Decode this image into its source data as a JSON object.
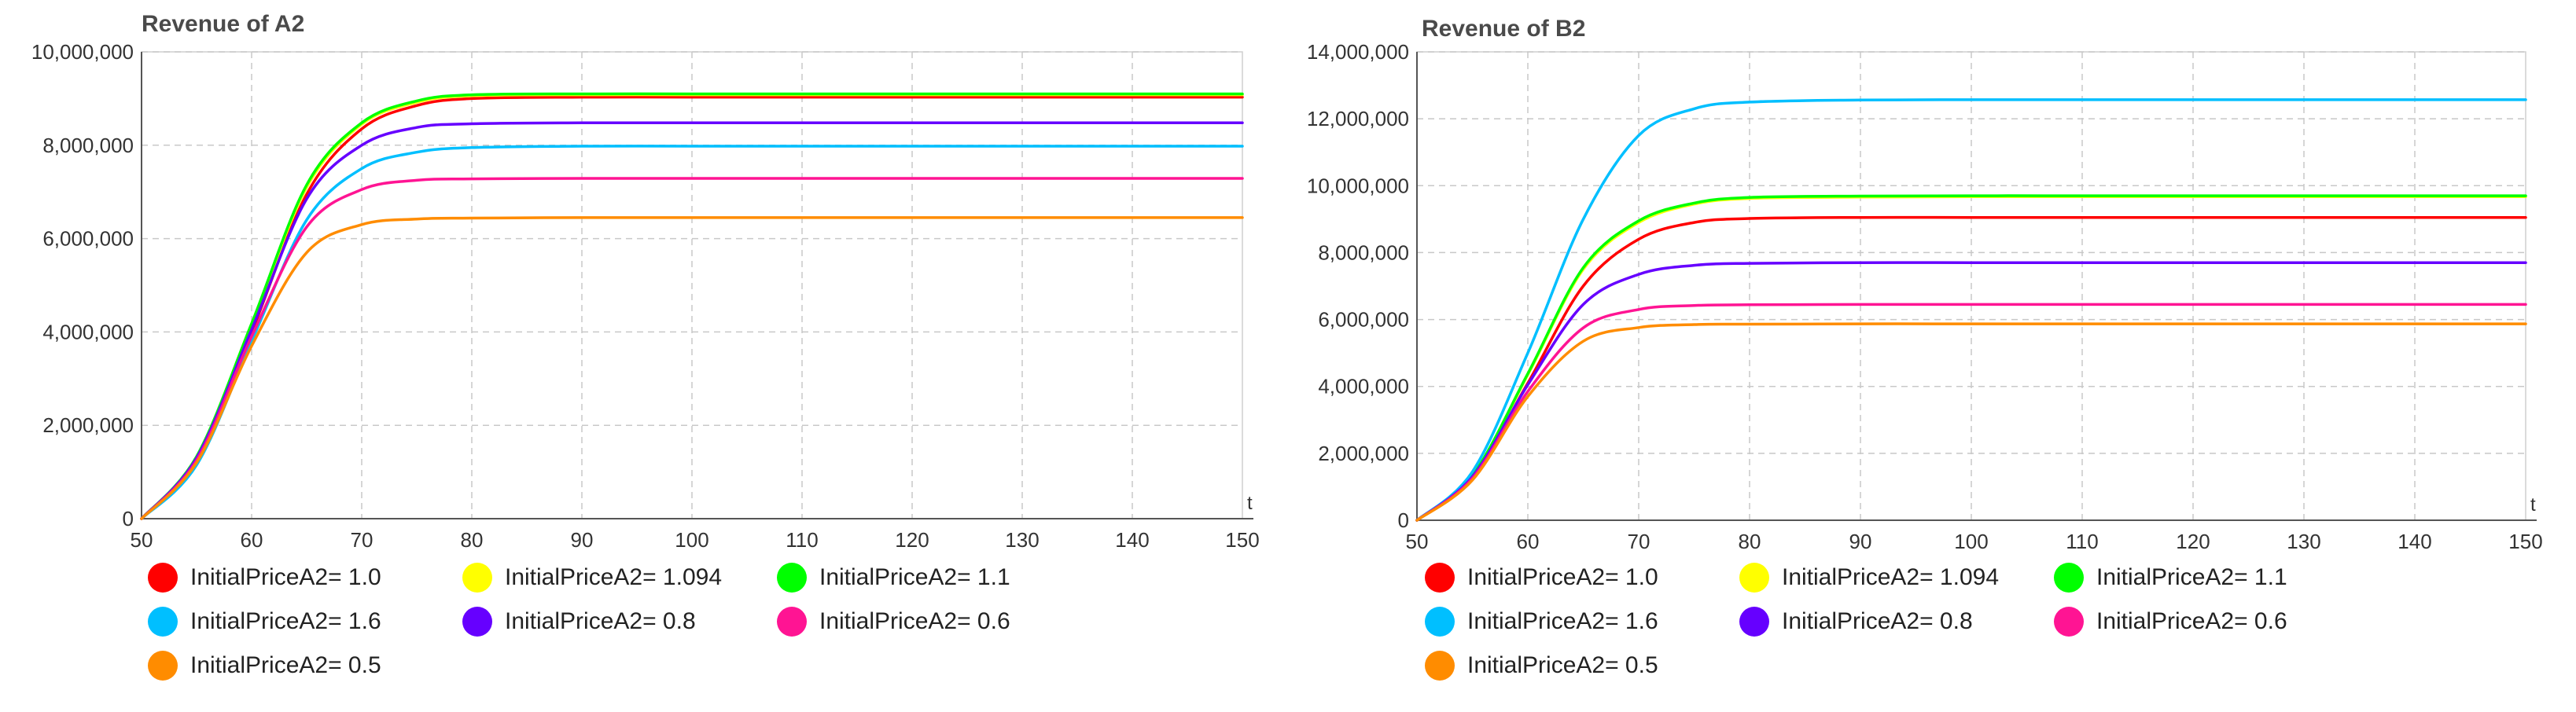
{
  "chart_data": [
    {
      "type": "line",
      "title": "Revenue of A2",
      "xlabel": "t",
      "ylabel": "",
      "xlim": [
        50,
        150
      ],
      "ylim": [
        0,
        10000000
      ],
      "xticks": [
        50,
        60,
        70,
        80,
        90,
        100,
        110,
        120,
        130,
        140,
        150
      ],
      "yticks": [
        0,
        2000000,
        4000000,
        6000000,
        8000000,
        10000000
      ],
      "ytick_labels": [
        "0",
        "2,000,000",
        "4,000,000",
        "6,000,000",
        "8,000,000",
        "10,000,000"
      ],
      "grid": true,
      "legend_position": "bottom",
      "x": [
        50,
        55,
        60,
        65,
        70,
        75,
        80,
        90,
        100,
        110,
        120,
        130,
        140,
        150
      ],
      "series": [
        {
          "name": "InitialPriceA2= 1.0",
          "color": "#ff0000",
          "values": [
            0,
            1300000,
            4000000,
            6950000,
            8350000,
            8850000,
            9000000,
            9030000,
            9030000,
            9030000,
            9030000,
            9030000,
            9030000,
            9030000
          ]
        },
        {
          "name": "InitialPriceA2= 1.094",
          "color": "#ffff00",
          "values": [
            0,
            1320000,
            4150000,
            7100000,
            8450000,
            8920000,
            9060000,
            9080000,
            9080000,
            9080000,
            9080000,
            9080000,
            9080000,
            9080000
          ]
        },
        {
          "name": "InitialPriceA2= 1.1",
          "color": "#00ff00",
          "values": [
            0,
            1330000,
            4180000,
            7150000,
            8480000,
            8950000,
            9080000,
            9100000,
            9100000,
            9100000,
            9100000,
            9100000,
            9100000,
            9100000
          ]
        },
        {
          "name": "InitialPriceA2= 1.6",
          "color": "#00bfff",
          "values": [
            0,
            1150000,
            3800000,
            6400000,
            7500000,
            7850000,
            7950000,
            7980000,
            7980000,
            7980000,
            7980000,
            7980000,
            7980000,
            7980000
          ]
        },
        {
          "name": "InitialPriceA2= 0.8",
          "color": "#6600ff",
          "values": [
            0,
            1300000,
            4050000,
            6850000,
            8000000,
            8380000,
            8460000,
            8480000,
            8480000,
            8480000,
            8480000,
            8480000,
            8480000,
            8480000
          ]
        },
        {
          "name": "InitialPriceA2= 0.6",
          "color": "#ff1493",
          "values": [
            0,
            1250000,
            3900000,
            6250000,
            7050000,
            7250000,
            7280000,
            7290000,
            7290000,
            7290000,
            7290000,
            7290000,
            7290000,
            7290000
          ]
        },
        {
          "name": "InitialPriceA2= 0.5",
          "color": "#ff8c00",
          "values": [
            0,
            1200000,
            3700000,
            5700000,
            6300000,
            6420000,
            6440000,
            6450000,
            6450000,
            6450000,
            6450000,
            6450000,
            6450000,
            6450000
          ]
        }
      ]
    },
    {
      "type": "line",
      "title": "Revenue of B2",
      "xlabel": "t",
      "ylabel": "",
      "xlim": [
        50,
        150
      ],
      "ylim": [
        0,
        14000000
      ],
      "xticks": [
        50,
        60,
        70,
        80,
        90,
        100,
        110,
        120,
        130,
        140,
        150
      ],
      "yticks": [
        0,
        2000000,
        4000000,
        6000000,
        8000000,
        10000000,
        12000000,
        14000000
      ],
      "ytick_labels": [
        "0",
        "2,000,000",
        "4,000,000",
        "6,000,000",
        "8,000,000",
        "10,000,000",
        "12,000,000",
        "14,000,000"
      ],
      "grid": true,
      "legend_position": "bottom",
      "x": [
        50,
        55,
        60,
        65,
        70,
        75,
        80,
        90,
        100,
        110,
        120,
        130,
        140,
        150
      ],
      "series": [
        {
          "name": "InitialPriceA2= 1.0",
          "color": "#ff0000",
          "values": [
            0,
            1300000,
            4100000,
            7000000,
            8400000,
            8900000,
            9020000,
            9050000,
            9050000,
            9050000,
            9050000,
            9050000,
            9050000,
            9050000
          ]
        },
        {
          "name": "InitialPriceA2= 1.094",
          "color": "#ffff00",
          "values": [
            0,
            1330000,
            4350000,
            7500000,
            8900000,
            9450000,
            9620000,
            9660000,
            9670000,
            9670000,
            9670000,
            9670000,
            9670000,
            9670000
          ]
        },
        {
          "name": "InitialPriceA2= 1.1",
          "color": "#00ff00",
          "values": [
            0,
            1340000,
            4380000,
            7550000,
            8950000,
            9480000,
            9650000,
            9690000,
            9700000,
            9700000,
            9700000,
            9700000,
            9700000,
            9700000
          ]
        },
        {
          "name": "InitialPriceA2= 1.6",
          "color": "#00bfff",
          "values": [
            0,
            1450000,
            5000000,
            9000000,
            11500000,
            12300000,
            12500000,
            12560000,
            12570000,
            12570000,
            12570000,
            12570000,
            12570000,
            12570000
          ]
        },
        {
          "name": "InitialPriceA2= 0.8",
          "color": "#6600ff",
          "values": [
            0,
            1300000,
            4050000,
            6450000,
            7350000,
            7620000,
            7680000,
            7700000,
            7700000,
            7700000,
            7700000,
            7700000,
            7700000,
            7700000
          ]
        },
        {
          "name": "InitialPriceA2= 0.6",
          "color": "#ff1493",
          "values": [
            0,
            1250000,
            3850000,
            5750000,
            6300000,
            6420000,
            6440000,
            6450000,
            6450000,
            6450000,
            6450000,
            6450000,
            6450000,
            6450000
          ]
        },
        {
          "name": "InitialPriceA2= 0.5",
          "color": "#ff8c00",
          "values": [
            0,
            1200000,
            3700000,
            5350000,
            5760000,
            5850000,
            5860000,
            5870000,
            5870000,
            5870000,
            5870000,
            5870000,
            5870000,
            5870000
          ]
        }
      ]
    }
  ]
}
